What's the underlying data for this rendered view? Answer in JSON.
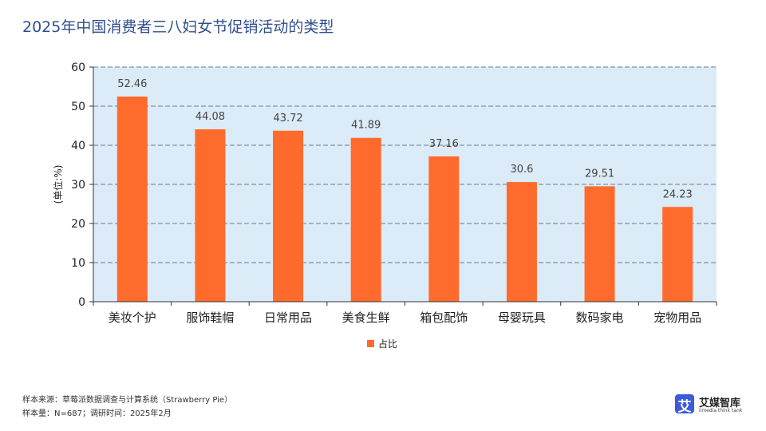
{
  "page": {
    "title": "2025年中国消费者三八妇女节促销活动的类型",
    "source_line": "样本来源：草莓派数据调查与计算系统（Strawberry Pie）",
    "sample_line": "样本量：N=687；调研时间：2025年2月"
  },
  "logo": {
    "badge": "艾",
    "name": "艾媒智库",
    "subtitle": "iimedia think tank"
  },
  "chart_data": {
    "type": "bar",
    "categories": [
      "美妆个护",
      "服饰鞋帽",
      "日常用品",
      "美食生鲜",
      "箱包配饰",
      "母婴玩具",
      "数码家电",
      "宠物用品"
    ],
    "series": [
      {
        "name": "占比",
        "values": [
          52.46,
          44.08,
          43.72,
          41.89,
          37.16,
          30.6,
          29.51,
          24.23
        ],
        "labels": [
          "52.46",
          "44.08",
          "43.72",
          "41.89",
          "37.16",
          "30.6",
          "29.51",
          "24.23"
        ],
        "color": "#ff6b2c"
      }
    ],
    "ylabel": "(单位:%)",
    "ylim": [
      0,
      60
    ],
    "yticks": [
      0,
      10,
      20,
      30,
      40,
      50,
      60
    ],
    "grid": true,
    "plot_background": "#dcebf8",
    "legend": "bottom-center"
  }
}
